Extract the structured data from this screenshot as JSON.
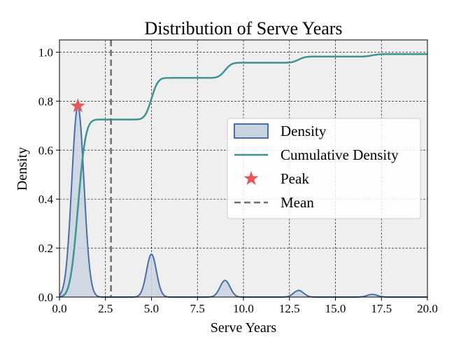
{
  "chart_data": {
    "type": "area",
    "title": "Distribution of Serve Years",
    "xlabel": "Serve Years",
    "ylabel": "Density",
    "xlim": [
      0,
      20
    ],
    "ylim": [
      0,
      1.05
    ],
    "x_ticks": [
      "0.0",
      "2.5",
      "5.0",
      "7.5",
      "10.0",
      "12.5",
      "15.0",
      "17.5",
      "20.0"
    ],
    "y_ticks": [
      "0.0",
      "0.2",
      "0.4",
      "0.6",
      "0.8",
      "1.0"
    ],
    "grid": true,
    "grid_style": "dashed",
    "background": "#efefef",
    "legend_position": "center-right",
    "density_components": [
      {
        "center": 1.0,
        "height": 0.78,
        "sigma": 0.33
      },
      {
        "center": 5.0,
        "height": 0.175,
        "sigma": 0.27
      },
      {
        "center": 9.0,
        "height": 0.068,
        "sigma": 0.27
      },
      {
        "center": 13.0,
        "height": 0.027,
        "sigma": 0.27
      },
      {
        "center": 17.0,
        "height": 0.011,
        "sigma": 0.27
      }
    ],
    "cumulative_steps": [
      {
        "center": 1.0,
        "level": 0.725,
        "sigma": 0.33
      },
      {
        "center": 5.0,
        "level": 0.895,
        "sigma": 0.28
      },
      {
        "center": 9.0,
        "level": 0.957,
        "sigma": 0.28
      },
      {
        "center": 13.0,
        "level": 0.982,
        "sigma": 0.28
      },
      {
        "center": 17.0,
        "level": 0.992,
        "sigma": 0.28
      }
    ],
    "peak": {
      "x": 1.0,
      "y": 0.78
    },
    "mean": 2.8,
    "series": [
      {
        "name": "Density",
        "style": "filled-area",
        "color": "#4a6fa5",
        "fill": "#c9d3e0"
      },
      {
        "name": "Cumulative Density",
        "style": "line",
        "color": "#3d9490"
      },
      {
        "name": "Peak",
        "style": "star-marker",
        "color": "#e25a5a"
      },
      {
        "name": "Mean",
        "style": "dashed-vertical-line",
        "color": "#6e6e6e"
      }
    ]
  }
}
